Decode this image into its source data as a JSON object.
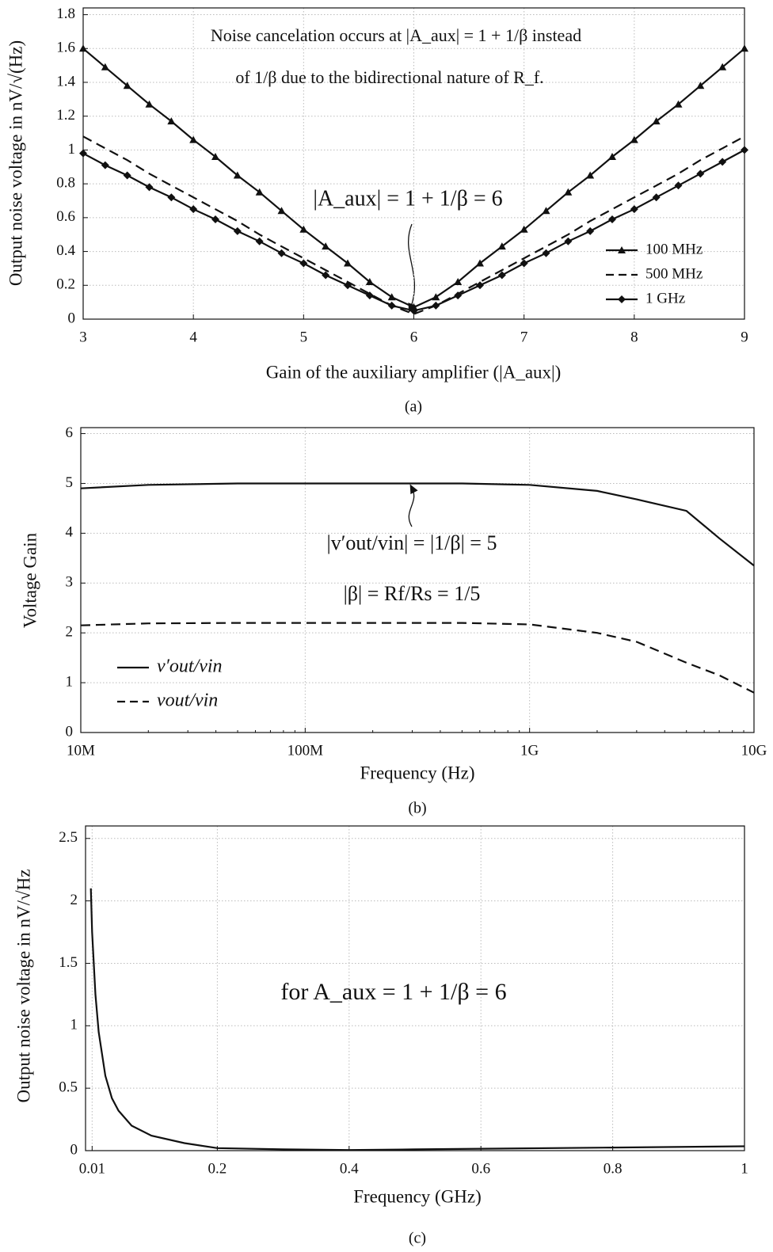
{
  "chart_data": [
    {
      "type": "line",
      "caption": "(a)",
      "x_label": "Gain of the auxiliary amplifier (|A_aux|)",
      "y_label": "Output noise voltage in nV/√(Hz)",
      "annotations": [
        "Noise cancelation occurs at |A_aux| = 1 + 1/β instead",
        "of 1/β due to the bidirectional nature of R_f.",
        "|A_aux| = 1 + 1/β = 6"
      ],
      "x": [
        3,
        3.2,
        3.4,
        3.6,
        3.8,
        4,
        4.2,
        4.4,
        4.6,
        4.8,
        5,
        5.2,
        5.4,
        5.6,
        5.8,
        6,
        6.2,
        6.4,
        6.6,
        6.8,
        7,
        7.2,
        7.4,
        7.6,
        7.8,
        8,
        8.2,
        8.4,
        8.6,
        8.8,
        9
      ],
      "series": [
        {
          "name": "100 MHz",
          "color": "#111111",
          "linestyle": "solid",
          "marker": "triangle",
          "values": [
            1.6,
            1.49,
            1.38,
            1.27,
            1.17,
            1.06,
            0.96,
            0.85,
            0.75,
            0.64,
            0.53,
            0.43,
            0.33,
            0.22,
            0.13,
            0.07,
            0.13,
            0.22,
            0.33,
            0.43,
            0.53,
            0.64,
            0.75,
            0.85,
            0.96,
            1.06,
            1.17,
            1.27,
            1.38,
            1.49,
            1.6
          ]
        },
        {
          "name": "500 MHz",
          "color": "#111111",
          "linestyle": "dashed",
          "marker": "none",
          "values": [
            1.08,
            1.01,
            0.94,
            0.86,
            0.79,
            0.72,
            0.65,
            0.58,
            0.5,
            0.43,
            0.36,
            0.29,
            0.22,
            0.15,
            0.08,
            0.03,
            0.08,
            0.15,
            0.22,
            0.29,
            0.36,
            0.43,
            0.5,
            0.58,
            0.65,
            0.72,
            0.79,
            0.86,
            0.94,
            1.01,
            1.08
          ]
        },
        {
          "name": "1 GHz",
          "color": "#111111",
          "linestyle": "solid",
          "marker": "diamond",
          "values": [
            0.98,
            0.91,
            0.85,
            0.78,
            0.72,
            0.65,
            0.59,
            0.52,
            0.46,
            0.39,
            0.33,
            0.26,
            0.2,
            0.14,
            0.08,
            0.05,
            0.08,
            0.14,
            0.2,
            0.26,
            0.33,
            0.39,
            0.46,
            0.52,
            0.59,
            0.65,
            0.72,
            0.79,
            0.86,
            0.93,
            1.0
          ]
        }
      ],
      "xlim": [
        3,
        9
      ],
      "xticks": [
        3,
        4,
        5,
        6,
        7,
        8,
        9
      ],
      "ylim": [
        0,
        1.84
      ],
      "yticks": [
        0,
        0.2,
        0.4,
        0.6,
        0.8,
        1,
        1.2,
        1.4,
        1.6,
        1.8
      ],
      "grid": true,
      "legend": "lower right"
    },
    {
      "type": "line",
      "caption": "(b)",
      "x_label": "Frequency (Hz)",
      "y_label": "Voltage Gain",
      "annotations": [
        "|v′out/vin| = |1/β| = 5",
        "|β| = Rf/Rs = 1/5"
      ],
      "x": [
        10000000,
        20000000,
        50000000,
        100000000,
        200000000,
        500000000,
        1000000000,
        2000000000,
        3000000000,
        5000000000,
        7000000000,
        10000000000
      ],
      "series": [
        {
          "name": "v′out/vin",
          "color": "#111111",
          "linestyle": "solid",
          "marker": "none",
          "values": [
            4.9,
            4.97,
            5.0,
            5.0,
            5.0,
            5.0,
            4.97,
            4.85,
            4.68,
            4.45,
            3.9,
            3.35
          ]
        },
        {
          "name": "vout/vin",
          "color": "#111111",
          "linestyle": "dashed",
          "marker": "none",
          "values": [
            2.15,
            2.19,
            2.2,
            2.2,
            2.2,
            2.2,
            2.17,
            2.0,
            1.82,
            1.4,
            1.15,
            0.8
          ]
        }
      ],
      "xscale": "log",
      "xlim": [
        10000000,
        10000000000
      ],
      "xticks": [
        {
          "value": 10000000,
          "label": "10M"
        },
        {
          "value": 100000000,
          "label": "100M"
        },
        {
          "value": 1000000000,
          "label": "1G"
        },
        {
          "value": 10000000000,
          "label": "10G"
        }
      ],
      "ylim": [
        0,
        6.12
      ],
      "yticks": [
        0,
        1,
        2,
        3,
        4,
        5,
        6
      ],
      "grid": true,
      "legend": "lower left"
    },
    {
      "type": "line",
      "caption": "(c)",
      "x_label": "Frequency (GHz)",
      "y_label": "Output noise voltage in nV/√Hz",
      "annotations": [
        "for A_aux = 1 + 1/β = 6"
      ],
      "x": [
        0.008,
        0.01,
        0.015,
        0.02,
        0.03,
        0.04,
        0.05,
        0.07,
        0.1,
        0.15,
        0.2,
        0.3,
        0.4,
        0.5,
        0.6,
        0.8,
        1.0
      ],
      "series": [
        {
          "name": null,
          "color": "#111111",
          "linestyle": "solid",
          "marker": "none",
          "values": [
            2.1,
            1.75,
            1.25,
            0.95,
            0.6,
            0.42,
            0.32,
            0.2,
            0.12,
            0.06,
            0.02,
            0.01,
            0.005,
            0.01,
            0.015,
            0.025,
            0.035
          ]
        }
      ],
      "xlim": [
        0,
        1
      ],
      "xticks": [
        0.01,
        0.2,
        0.4,
        0.6,
        0.8,
        1
      ],
      "ylim": [
        0,
        2.6
      ],
      "yticks": [
        0,
        0.5,
        1,
        1.5,
        2,
        2.5
      ],
      "grid": true,
      "legend": null
    }
  ]
}
